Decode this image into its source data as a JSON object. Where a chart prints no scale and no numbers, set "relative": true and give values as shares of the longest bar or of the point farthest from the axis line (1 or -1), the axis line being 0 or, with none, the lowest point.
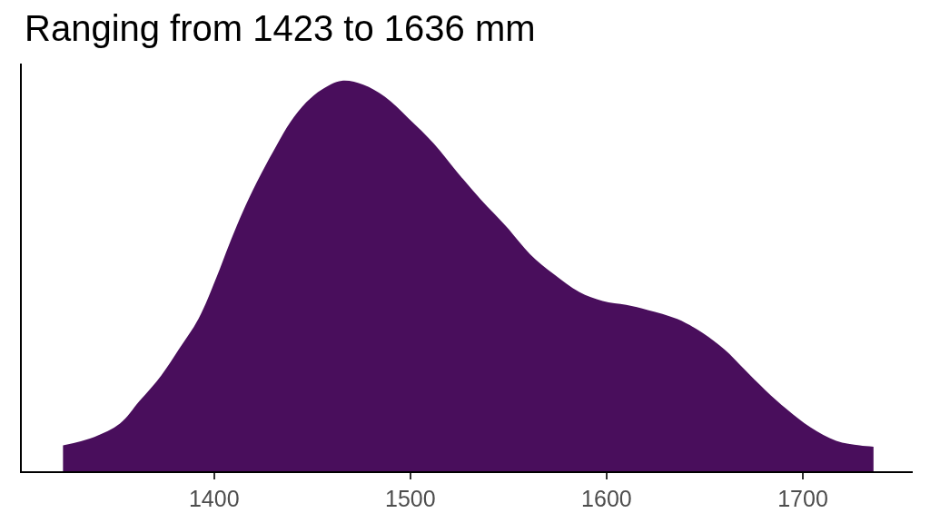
{
  "chart_data": {
    "type": "area",
    "title": "Ranging from 1423 to 1636 mm",
    "relative": true,
    "x": [
      1323,
      1339,
      1352,
      1362,
      1373,
      1382,
      1392,
      1401,
      1408,
      1416,
      1424,
      1432,
      1439,
      1447,
      1455,
      1465,
      1476,
      1487,
      1499,
      1512,
      1524,
      1536,
      1549,
      1561,
      1573,
      1586,
      1598,
      1610,
      1621,
      1636,
      1649,
      1660,
      1670,
      1681,
      1692,
      1704,
      1717,
      1729,
      1736
    ],
    "series": [
      {
        "color": "#490e5c",
        "values": [
          0.066,
          0.088,
          0.122,
          0.18,
          0.245,
          0.312,
          0.39,
          0.494,
          0.585,
          0.68,
          0.762,
          0.836,
          0.895,
          0.945,
          0.978,
          1.0,
          0.99,
          0.959,
          0.904,
          0.839,
          0.765,
          0.695,
          0.626,
          0.556,
          0.505,
          0.459,
          0.436,
          0.426,
          0.413,
          0.39,
          0.354,
          0.312,
          0.262,
          0.207,
          0.158,
          0.112,
          0.078,
          0.066,
          0.063
        ]
      }
    ],
    "xlim": [
      1302,
      1756
    ],
    "xticks": [
      1400,
      1500,
      1600,
      1700
    ]
  }
}
